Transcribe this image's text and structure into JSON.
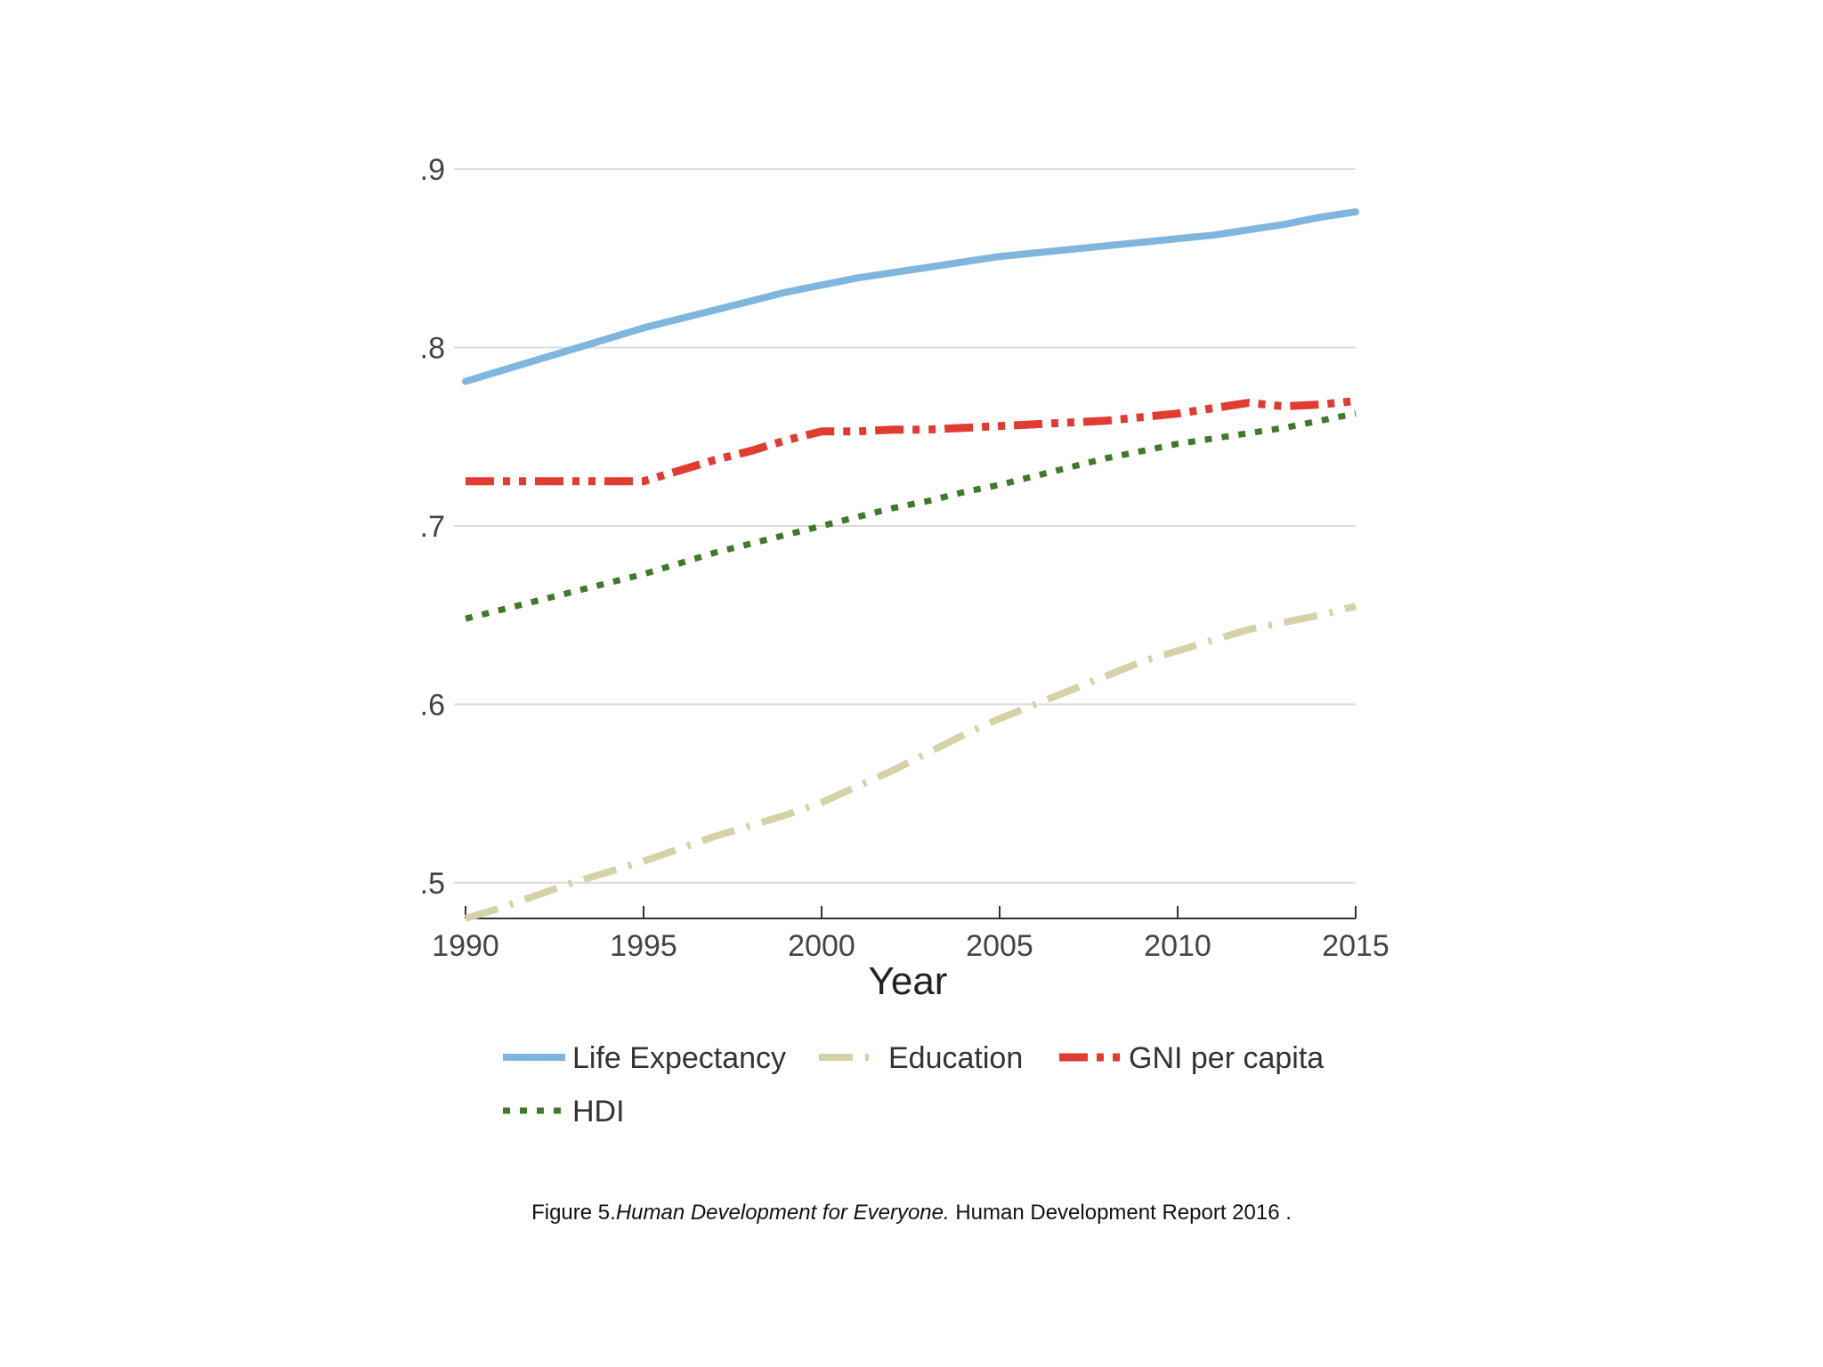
{
  "chart_data": {
    "type": "line",
    "xlabel": "Year",
    "ylabel": "",
    "xlim": [
      1990,
      2015
    ],
    "ylim": [
      0.48,
      0.9
    ],
    "x_ticks": [
      1990,
      1995,
      2000,
      2005,
      2010,
      2015
    ],
    "x_tick_labels": [
      "1990",
      "1995",
      "2000",
      "2005",
      "2010",
      "2015"
    ],
    "y_ticks": [
      0.5,
      0.6,
      0.7,
      0.8,
      0.9
    ],
    "y_tick_labels": [
      ".5",
      ".6",
      ".7",
      ".8",
      ".9"
    ],
    "grid": true,
    "legend_position": "bottom",
    "series": [
      {
        "name": "Life Expectancy",
        "color": "#7fb6de",
        "style": "solid",
        "x": [
          1990,
          1991,
          1992,
          1993,
          1994,
          1995,
          1996,
          1997,
          1998,
          1999,
          2000,
          2001,
          2002,
          2003,
          2004,
          2005,
          2006,
          2007,
          2008,
          2009,
          2010,
          2011,
          2012,
          2013,
          2014,
          2015
        ],
        "values": [
          0.781,
          0.787,
          0.793,
          0.799,
          0.805,
          0.811,
          0.816,
          0.821,
          0.826,
          0.831,
          0.835,
          0.839,
          0.842,
          0.845,
          0.848,
          0.851,
          0.853,
          0.855,
          0.857,
          0.859,
          0.861,
          0.863,
          0.866,
          0.869,
          0.873,
          0.876
        ]
      },
      {
        "name": "Education",
        "color": "#d6d2a8",
        "style": "dash",
        "x": [
          1990,
          1991,
          1992,
          1993,
          1994,
          1995,
          1996,
          1997,
          1998,
          1999,
          2000,
          2001,
          2002,
          2003,
          2004,
          2005,
          2006,
          2007,
          2008,
          2009,
          2010,
          2011,
          2012,
          2013,
          2014,
          2015
        ],
        "values": [
          0.48,
          0.486,
          0.493,
          0.5,
          0.506,
          0.512,
          0.519,
          0.526,
          0.532,
          0.538,
          0.545,
          0.554,
          0.563,
          0.573,
          0.583,
          0.592,
          0.6,
          0.608,
          0.616,
          0.624,
          0.63,
          0.636,
          0.642,
          0.646,
          0.65,
          0.655
        ]
      },
      {
        "name": "GNI per capita",
        "color": "#e03c31",
        "style": "dashdot",
        "x": [
          1990,
          1991,
          1992,
          1993,
          1994,
          1995,
          1996,
          1997,
          1998,
          1999,
          2000,
          2001,
          2002,
          2003,
          2004,
          2005,
          2006,
          2007,
          2008,
          2009,
          2010,
          2011,
          2012,
          2013,
          2014,
          2015
        ],
        "values": [
          0.725,
          0.725,
          0.725,
          0.725,
          0.725,
          0.725,
          0.731,
          0.737,
          0.742,
          0.748,
          0.753,
          0.753,
          0.754,
          0.754,
          0.755,
          0.756,
          0.757,
          0.758,
          0.759,
          0.761,
          0.763,
          0.766,
          0.769,
          0.767,
          0.768,
          0.77
        ]
      },
      {
        "name": "HDI",
        "color": "#3e7a2a",
        "style": "dot",
        "x": [
          1990,
          1991,
          1992,
          1993,
          1994,
          1995,
          1996,
          1997,
          1998,
          1999,
          2000,
          2001,
          2002,
          2003,
          2004,
          2005,
          2006,
          2007,
          2008,
          2009,
          2010,
          2011,
          2012,
          2013,
          2014,
          2015
        ],
        "values": [
          0.648,
          0.653,
          0.658,
          0.663,
          0.668,
          0.673,
          0.679,
          0.685,
          0.69,
          0.695,
          0.7,
          0.705,
          0.71,
          0.714,
          0.719,
          0.723,
          0.728,
          0.733,
          0.738,
          0.742,
          0.746,
          0.749,
          0.752,
          0.755,
          0.759,
          0.763
        ]
      }
    ]
  },
  "caption": {
    "prefix": "Figure 5.",
    "italic": "Human Development for Everyone.",
    "suffix": " Human Development Report 2016 ."
  }
}
